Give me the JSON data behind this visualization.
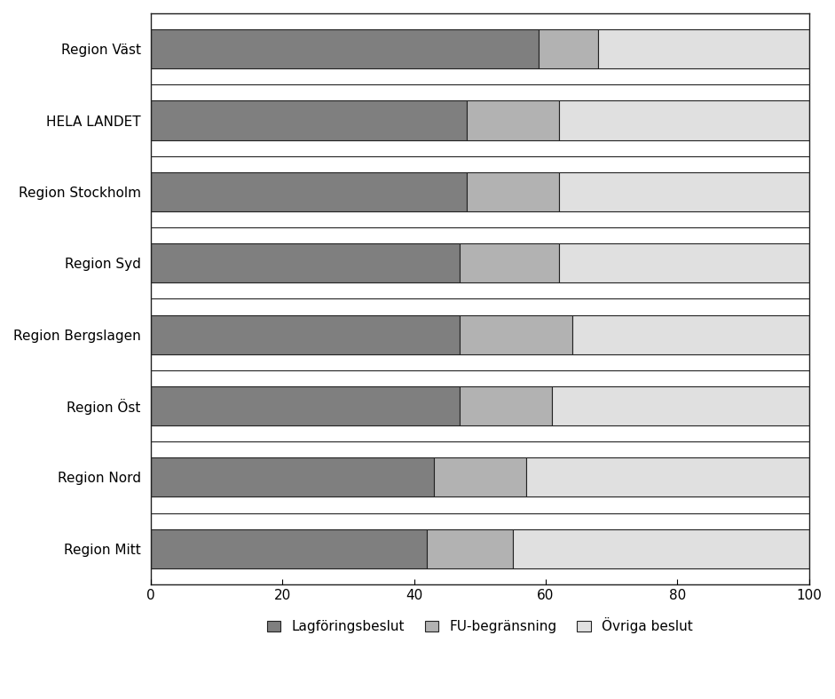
{
  "categories": [
    "Region Väst",
    "HELA LANDET",
    "Region Stockholm",
    "Region Syd",
    "Region Bergslagen",
    "Region Öst",
    "Region Nord",
    "Region Mitt"
  ],
  "lagforingsbeslut": [
    59,
    48,
    48,
    47,
    47,
    47,
    43,
    42
  ],
  "fu_begransning": [
    9,
    14,
    14,
    15,
    17,
    14,
    14,
    13
  ],
  "ovriga_beslut": [
    32,
    38,
    38,
    38,
    36,
    39,
    43,
    45
  ],
  "color_lagforingsbeslut": "#7f7f7f",
  "color_fu_begransning": "#b2b2b2",
  "color_ovriga_beslut": "#e0e0e0",
  "legend_labels": [
    "Lagföringsbeslut",
    "FU-begränsning",
    "Övriga beslut"
  ],
  "xlim": [
    0,
    100
  ],
  "xticks": [
    0,
    20,
    40,
    60,
    80,
    100
  ],
  "bar_height": 0.55,
  "figsize": [
    9.41,
    7.87
  ],
  "dpi": 100,
  "edgecolor": "#222222",
  "spine_color": "#222222"
}
